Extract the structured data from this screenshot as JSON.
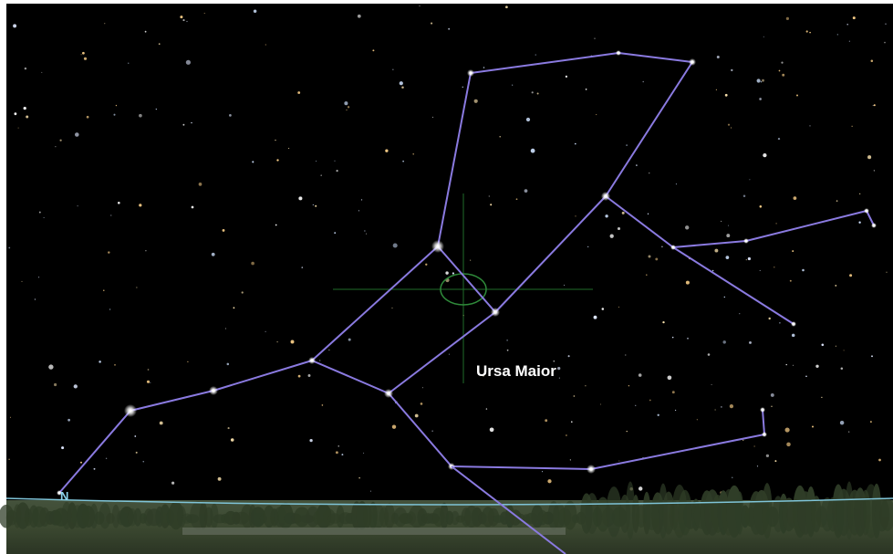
{
  "constellation": {
    "name": "Ursa Maior"
  },
  "compass": {
    "direction": "N"
  }
}
